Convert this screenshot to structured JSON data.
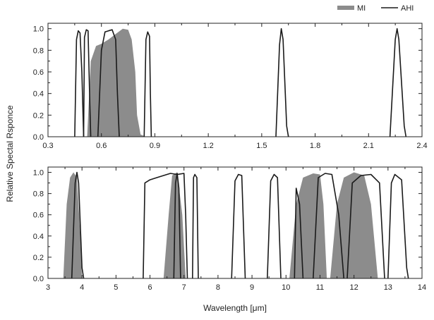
{
  "legend": {
    "mi_label": "MI",
    "ahi_label": "AHI",
    "position": "top-right",
    "mi_color": "#8c8c8c",
    "ahi_color": "#1a1a1a"
  },
  "ylabel": "Relative Spectal Rsponce",
  "xlabel": "Wavelength [μm]",
  "chart_data": [
    {
      "type": "area",
      "panel": "top",
      "title": "",
      "xlim": [
        0.3,
        2.4
      ],
      "ylim": [
        0,
        1.05
      ],
      "x_ticks": [
        "0.3",
        "0.6",
        "0.9",
        "1.2",
        "1.5",
        "1.8",
        "2.1",
        "2.4"
      ],
      "y_ticks": [
        "0.0",
        "0.2",
        "0.4",
        "0.6",
        "0.8",
        "1.0"
      ],
      "series": [
        {
          "name": "MI",
          "style": "filled",
          "bands": [
            {
              "points": [
                [
                  0.52,
                  0
                ],
                [
                  0.54,
                  0.7
                ],
                [
                  0.57,
                  0.84
                ],
                [
                  0.6,
                  0.86
                ],
                [
                  0.64,
                  0.9
                ],
                [
                  0.68,
                  0.95
                ],
                [
                  0.72,
                  1.0
                ],
                [
                  0.75,
                  0.99
                ],
                [
                  0.77,
                  0.9
                ],
                [
                  0.79,
                  0.6
                ],
                [
                  0.8,
                  0.2
                ],
                [
                  0.82,
                  0.02
                ],
                [
                  0.85,
                  0
                ]
              ]
            }
          ]
        },
        {
          "name": "AHI",
          "style": "line",
          "bands": [
            {
              "points": [
                [
                  0.45,
                  0
                ],
                [
                  0.46,
                  0.9
                ],
                [
                  0.47,
                  0.98
                ],
                [
                  0.48,
                  0.96
                ],
                [
                  0.49,
                  0.6
                ],
                [
                  0.5,
                  0
                ]
              ]
            },
            {
              "points": [
                [
                  0.5,
                  0
                ],
                [
                  0.505,
                  0.92
                ],
                [
                  0.515,
                  0.99
                ],
                [
                  0.525,
                  0.98
                ],
                [
                  0.535,
                  0.3
                ],
                [
                  0.54,
                  0
                ]
              ]
            },
            {
              "points": [
                [
                  0.58,
                  0
                ],
                [
                  0.6,
                  0.8
                ],
                [
                  0.62,
                  0.97
                ],
                [
                  0.64,
                  0.98
                ],
                [
                  0.66,
                  0.99
                ],
                [
                  0.68,
                  0.9
                ],
                [
                  0.69,
                  0.4
                ],
                [
                  0.7,
                  0
                ]
              ]
            },
            {
              "points": [
                [
                  0.84,
                  0
                ],
                [
                  0.85,
                  0.9
                ],
                [
                  0.86,
                  0.97
                ],
                [
                  0.87,
                  0.93
                ],
                [
                  0.875,
                  0.4
                ],
                [
                  0.88,
                  0
                ]
              ]
            },
            {
              "points": [
                [
                  1.58,
                  0
                ],
                [
                  1.6,
                  0.85
                ],
                [
                  1.61,
                  1.0
                ],
                [
                  1.62,
                  0.9
                ],
                [
                  1.64,
                  0.1
                ],
                [
                  1.65,
                  0
                ]
              ]
            },
            {
              "points": [
                [
                  2.22,
                  0
                ],
                [
                  2.25,
                  0.9
                ],
                [
                  2.26,
                  1.0
                ],
                [
                  2.27,
                  0.9
                ],
                [
                  2.3,
                  0.1
                ],
                [
                  2.31,
                  0
                ]
              ]
            }
          ]
        }
      ]
    },
    {
      "type": "area",
      "panel": "bottom",
      "title": "",
      "xlim": [
        3,
        14
      ],
      "ylim": [
        0,
        1.05
      ],
      "x_ticks": [
        "3",
        "4",
        "5",
        "6",
        "7",
        "8",
        "9",
        "10",
        "11",
        "12",
        "13",
        "14"
      ],
      "y_ticks": [
        "0.0",
        "0.2",
        "0.4",
        "0.6",
        "0.8",
        "1.0"
      ],
      "series": [
        {
          "name": "MI",
          "style": "filled",
          "bands": [
            {
              "points": [
                [
                  3.45,
                  0
                ],
                [
                  3.55,
                  0.7
                ],
                [
                  3.65,
                  0.95
                ],
                [
                  3.75,
                  1.0
                ],
                [
                  3.85,
                  0.95
                ],
                [
                  3.95,
                  0.4
                ],
                [
                  4.0,
                  0
                ]
              ]
            },
            {
              "points": [
                [
                  6.4,
                  0
                ],
                [
                  6.55,
                  0.6
                ],
                [
                  6.65,
                  0.97
                ],
                [
                  6.8,
                  1.0
                ],
                [
                  6.95,
                  0.6
                ],
                [
                  7.05,
                  0
                ]
              ]
            },
            {
              "points": [
                [
                  10.1,
                  0
                ],
                [
                  10.3,
                  0.7
                ],
                [
                  10.5,
                  0.95
                ],
                [
                  10.8,
                  0.99
                ],
                [
                  11.0,
                  0.98
                ],
                [
                  11.1,
                  0.7
                ],
                [
                  11.2,
                  0
                ]
              ]
            },
            {
              "points": [
                [
                  11.3,
                  0
                ],
                [
                  11.5,
                  0.7
                ],
                [
                  11.7,
                  0.95
                ],
                [
                  12.0,
                  1.0
                ],
                [
                  12.3,
                  0.97
                ],
                [
                  12.5,
                  0.7
                ],
                [
                  12.7,
                  0
                ]
              ]
            }
          ]
        },
        {
          "name": "AHI",
          "style": "line",
          "bands": [
            {
              "points": [
                [
                  3.7,
                  0
                ],
                [
                  3.8,
                  0.9
                ],
                [
                  3.85,
                  1.0
                ],
                [
                  3.9,
                  0.9
                ],
                [
                  4.0,
                  0.1
                ],
                [
                  4.05,
                  0
                ]
              ]
            },
            {
              "points": [
                [
                  5.8,
                  0
                ],
                [
                  5.85,
                  0.9
                ],
                [
                  6.0,
                  0.93
                ],
                [
                  6.2,
                  0.95
                ],
                [
                  6.4,
                  0.97
                ],
                [
                  6.6,
                  0.99
                ],
                [
                  6.8,
                  0.98
                ],
                [
                  7.0,
                  0.99
                ],
                [
                  7.05,
                  0.6
                ],
                [
                  7.1,
                  0
                ]
              ]
            },
            {
              "points": [
                [
                  6.7,
                  0
                ],
                [
                  6.75,
                  0.9
                ],
                [
                  6.8,
                  0.99
                ],
                [
                  6.85,
                  0.85
                ],
                [
                  6.9,
                  0
                ]
              ]
            },
            {
              "points": [
                [
                  7.25,
                  0
                ],
                [
                  7.28,
                  0.95
                ],
                [
                  7.32,
                  0.98
                ],
                [
                  7.38,
                  0.95
                ],
                [
                  7.42,
                  0
                ]
              ]
            },
            {
              "points": [
                [
                  8.4,
                  0
                ],
                [
                  8.5,
                  0.92
                ],
                [
                  8.6,
                  0.98
                ],
                [
                  8.7,
                  0.97
                ],
                [
                  8.8,
                  0
                ]
              ]
            },
            {
              "points": [
                [
                  9.45,
                  0
                ],
                [
                  9.55,
                  0.92
                ],
                [
                  9.65,
                  0.98
                ],
                [
                  9.75,
                  0.95
                ],
                [
                  9.85,
                  0
                ]
              ]
            },
            {
              "points": [
                [
                  10.25,
                  0
                ],
                [
                  10.3,
                  0.85
                ],
                [
                  10.4,
                  0.7
                ],
                [
                  10.5,
                  0.0
                ]
              ]
            },
            {
              "points": [
                [
                  10.8,
                  0
                ],
                [
                  10.95,
                  0.95
                ],
                [
                  11.15,
                  0.99
                ],
                [
                  11.35,
                  0.98
                ],
                [
                  11.55,
                  0.6
                ],
                [
                  11.7,
                  0
                ]
              ]
            },
            {
              "points": [
                [
                  11.8,
                  0
                ],
                [
                  11.95,
                  0.9
                ],
                [
                  12.2,
                  0.97
                ],
                [
                  12.5,
                  0.98
                ],
                [
                  12.75,
                  0.9
                ],
                [
                  12.9,
                  0
                ]
              ]
            },
            {
              "points": [
                [
                  13.0,
                  0
                ],
                [
                  13.1,
                  0.9
                ],
                [
                  13.2,
                  0.98
                ],
                [
                  13.4,
                  0.93
                ],
                [
                  13.55,
                  0.1
                ],
                [
                  13.6,
                  0
                ]
              ]
            }
          ]
        }
      ]
    }
  ]
}
